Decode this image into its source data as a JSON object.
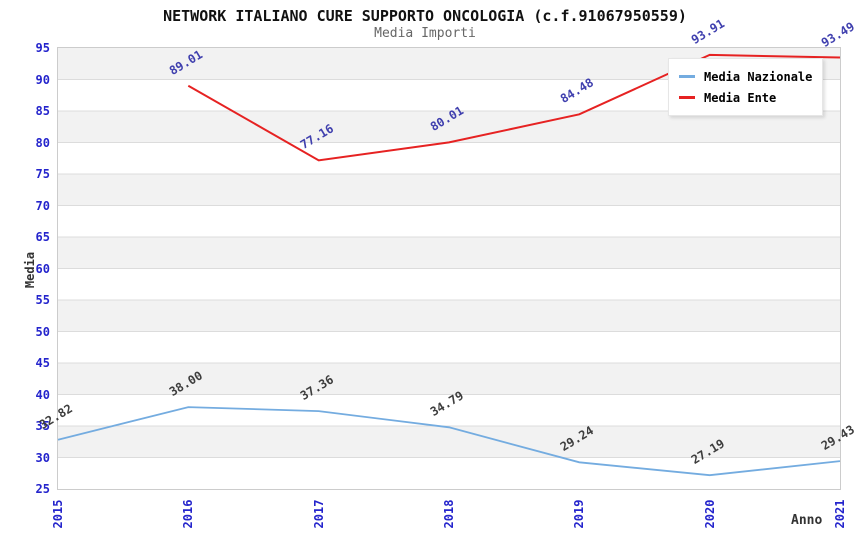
{
  "header": {
    "title": "NETWORK ITALIANO CURE SUPPORTO ONCOLOGIA (c.f.91067950559)",
    "subtitle": "Media Importi"
  },
  "chart_data": {
    "type": "line",
    "title": "NETWORK ITALIANO CURE SUPPORTO ONCOLOGIA (c.f.91067950559)",
    "subtitle": "Media Importi",
    "xlabel": "Anno",
    "ylabel": "Media",
    "x": [
      "2015",
      "2016",
      "2017",
      "2018",
      "2019",
      "2020",
      "2021"
    ],
    "series": [
      {
        "name": "Media Nazionale",
        "color": "#74ace0",
        "label_color": "#3d3d3d",
        "line_width": 1.8,
        "values": [
          32.82,
          38.0,
          37.36,
          34.79,
          29.24,
          27.19,
          29.43
        ]
      },
      {
        "name": "Media Ente",
        "color": "#e62222",
        "label_color": "#3f3fae",
        "line_width": 2,
        "values": [
          null,
          89.01,
          77.16,
          80.01,
          84.48,
          93.91,
          93.49
        ]
      }
    ],
    "ylim": [
      25,
      95
    ],
    "ytick_step": 5,
    "grid": true,
    "grid_color": "#dcdcdc",
    "band_colors": [
      "#f2f2f2",
      "#ffffff"
    ],
    "tick_color": "#2424cc",
    "legend_position": "top-right"
  }
}
